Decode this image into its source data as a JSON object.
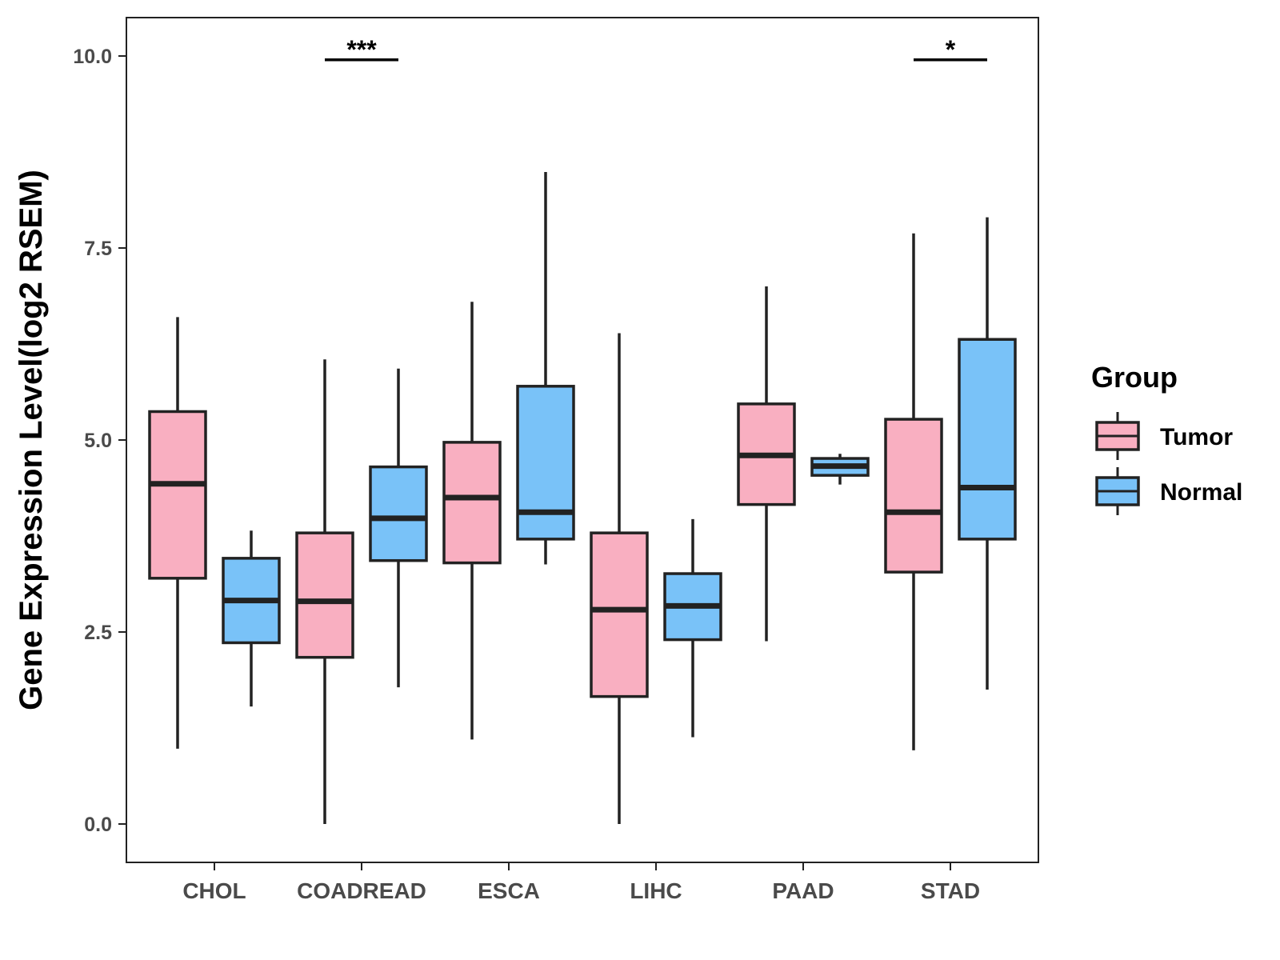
{
  "chart_data": {
    "type": "boxplot",
    "title": "",
    "xlabel": "",
    "ylabel": "Gene Expression Level(log2 RSEM)",
    "ylim": [
      -0.5,
      10.5
    ],
    "yticks": [
      0.0,
      2.5,
      5.0,
      7.5,
      10.0
    ],
    "ytick_labels": [
      "0.0",
      "2.5",
      "5.0",
      "7.5",
      "10.0"
    ],
    "categories": [
      "CHOL",
      "COADREAD",
      "ESCA",
      "LIHC",
      "PAAD",
      "STAD"
    ],
    "legend": {
      "title": "Group",
      "position": "right",
      "entries": [
        "Tumor",
        "Normal"
      ]
    },
    "colors": {
      "Tumor": "#F9AFC1",
      "Normal": "#79C2F8",
      "outline": "#222222"
    },
    "series": [
      {
        "name": "Tumor",
        "boxes": [
          {
            "min": 0.98,
            "q1": 3.2,
            "median": 4.43,
            "q3": 5.37,
            "max": 6.6
          },
          {
            "min": 0.0,
            "q1": 2.17,
            "median": 2.9,
            "q3": 3.79,
            "max": 6.05
          },
          {
            "min": 1.1,
            "q1": 3.4,
            "median": 4.25,
            "q3": 4.97,
            "max": 6.8
          },
          {
            "min": 0.0,
            "q1": 1.66,
            "median": 2.79,
            "q3": 3.79,
            "max": 6.39
          },
          {
            "min": 2.38,
            "q1": 4.16,
            "median": 4.8,
            "q3": 5.47,
            "max": 7.0
          },
          {
            "min": 0.96,
            "q1": 3.28,
            "median": 4.06,
            "q3": 5.27,
            "max": 7.69
          }
        ]
      },
      {
        "name": "Normal",
        "boxes": [
          {
            "min": 1.53,
            "q1": 2.36,
            "median": 2.91,
            "q3": 3.46,
            "max": 3.82
          },
          {
            "min": 1.78,
            "q1": 3.43,
            "median": 3.98,
            "q3": 4.65,
            "max": 5.93
          },
          {
            "min": 3.38,
            "q1": 3.71,
            "median": 4.06,
            "q3": 5.7,
            "max": 8.49
          },
          {
            "min": 1.13,
            "q1": 2.4,
            "median": 2.84,
            "q3": 3.26,
            "max": 3.97
          },
          {
            "min": 4.42,
            "q1": 4.54,
            "median": 4.66,
            "q3": 4.76,
            "max": 4.82
          },
          {
            "min": 1.75,
            "q1": 3.71,
            "median": 4.38,
            "q3": 6.31,
            "max": 7.9
          }
        ]
      }
    ],
    "annotations": [
      {
        "category": "COADREAD",
        "label": "***",
        "y": 9.95
      },
      {
        "category": "STAD",
        "label": "*",
        "y": 9.95
      }
    ]
  }
}
